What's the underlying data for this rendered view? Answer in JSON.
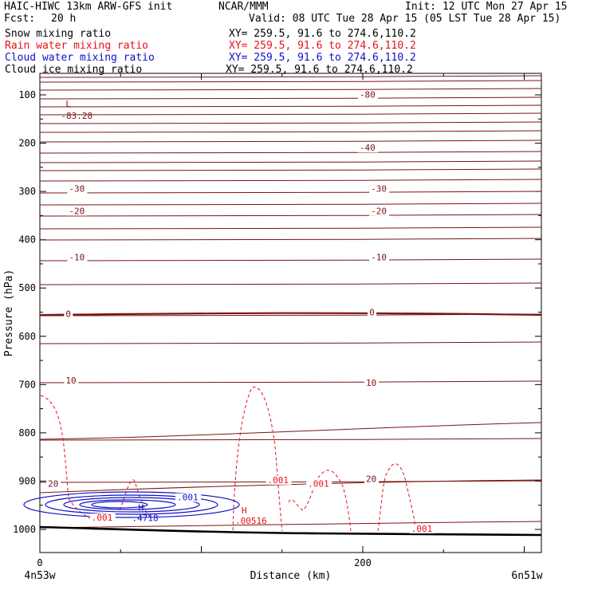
{
  "header": {
    "model": "HAIC-HIWC 13km ARW-GFS init",
    "org": "NCAR/MMM",
    "init": "Init: 12 UTC Mon 27 Apr 15",
    "fcst_label": "Fcst:",
    "fcst_value": "20 h",
    "valid": "Valid: 08 UTC Tue 28 Apr 15 (05 LST Tue 28 Apr 15)"
  },
  "fields": [
    {
      "name": "Snow mixing ratio",
      "xy": "XY= 259.5, 91.6 to 274.6,110.2",
      "color": "#000000"
    },
    {
      "name": "Rain water mixing ratio",
      "xy": "XY= 259.5, 91.6 to 274.6,110.2",
      "color": "#e8101a"
    },
    {
      "name": "Cloud water mixing ratio",
      "xy": "XY= 259.5, 91.6 to 274.6,110.2",
      "color": "#1010c8"
    },
    {
      "name": "Cloud ice mixing ratio",
      "xy": "XY= 259.5, 91.6 to 274.6,110.2",
      "color": "#000000"
    }
  ],
  "chart_data": {
    "type": "line",
    "xlabel": "Distance (km)",
    "ylabel": "Pressure (hPa)",
    "xlim": [
      0,
      310
    ],
    "ylim": [
      1050,
      50
    ],
    "x_ticks": [
      0,
      200
    ],
    "y_ticks": [
      100,
      200,
      300,
      400,
      500,
      600,
      700,
      800,
      900,
      1000
    ],
    "endpoints": {
      "left": "4n53w",
      "right": "6n51w"
    },
    "colors": {
      "temperature": "#7a1414",
      "rain": "#e8101a",
      "cloud_water": "#1010c8",
      "ground": "#000000"
    },
    "temperature_labels": [
      {
        "text": "-80",
        "x": 198,
        "p": 106
      },
      {
        "text": "-40",
        "x": 198,
        "p": 216
      },
      {
        "text": "-30",
        "x": 18,
        "p": 301
      },
      {
        "text": "-30",
        "x": 205,
        "p": 301
      },
      {
        "text": "-20",
        "x": 18,
        "p": 347
      },
      {
        "text": "-20",
        "x": 205,
        "p": 347
      },
      {
        "text": "-10",
        "x": 18,
        "p": 443
      },
      {
        "text": "-10",
        "x": 205,
        "p": 443
      },
      {
        "text": "0",
        "x": 16,
        "p": 560
      },
      {
        "text": "0",
        "x": 204,
        "p": 557
      },
      {
        "text": "10",
        "x": 16,
        "p": 698
      },
      {
        "text": "10",
        "x": 202,
        "p": 703
      },
      {
        "text": "20",
        "x": 5,
        "p": 912
      },
      {
        "text": "20",
        "x": 202,
        "p": 902
      }
    ],
    "extrema": [
      {
        "marker": "L",
        "value": "-83.28",
        "x": 15,
        "p": 80
      },
      {
        "marker": "H",
        "value": ".4718",
        "x": 60,
        "p": 950
      },
      {
        "marker": "H",
        "value": ".00516",
        "x": 122,
        "p": 965
      }
    ],
    "rain_labels": [
      {
        "text": ".001",
        "x": 32,
        "p": 982
      },
      {
        "text": ".001",
        "x": 141,
        "p": 904
      },
      {
        "text": ".001",
        "x": 166,
        "p": 912
      },
      {
        "text": ".001",
        "x": 230,
        "p": 1005
      }
    ],
    "cloud_water_labels": [
      {
        "text": ".001",
        "x": 85,
        "p": 940
      }
    ]
  }
}
